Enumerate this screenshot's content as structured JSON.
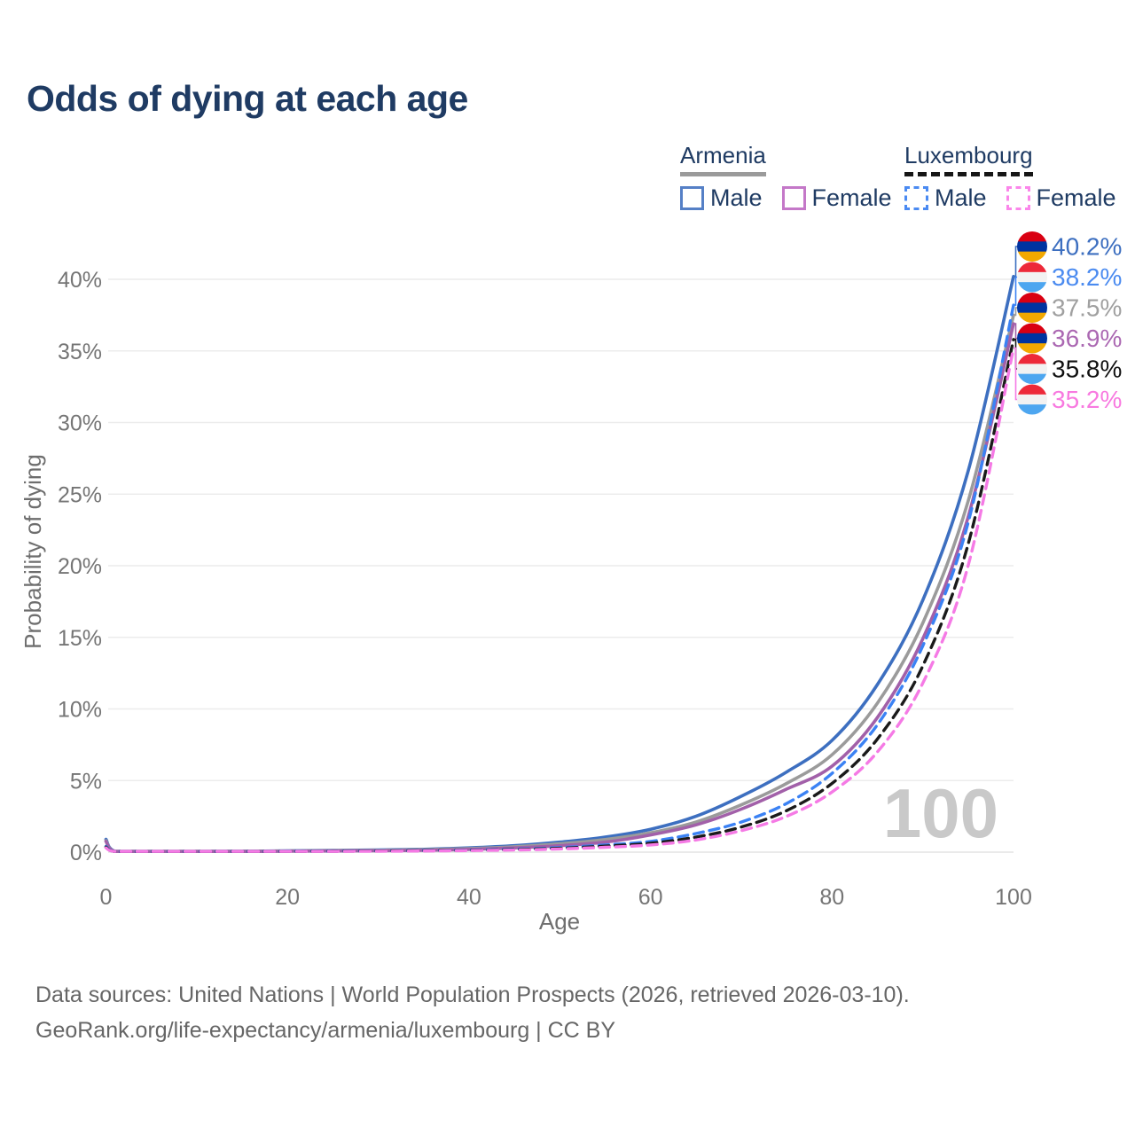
{
  "title": "Odds of dying at each age",
  "legend": {
    "groups": [
      {
        "name": "Armenia",
        "line_style": "solid",
        "underline_color": "#9a9a9a",
        "items": [
          {
            "label": "Male",
            "swatch_color": "#5580c6",
            "swatch_style": "solid"
          },
          {
            "label": "Female",
            "swatch_color": "#c478c8",
            "swatch_style": "solid"
          }
        ]
      },
      {
        "name": "Luxembourg",
        "line_style": "dashed",
        "underline_color": "#161616",
        "items": [
          {
            "label": "Male",
            "swatch_color": "#4a8af2",
            "swatch_style": "dashed"
          },
          {
            "label": "Female",
            "swatch_color": "#fb86ea",
            "swatch_style": "dashed"
          }
        ]
      }
    ]
  },
  "chart_data": {
    "type": "line",
    "title": "Odds of dying at each age",
    "xlabel": "Age",
    "ylabel": "Probability of dying",
    "xlim": [
      0,
      100
    ],
    "ylim": [
      0,
      42
    ],
    "grid": "horizontal",
    "xticks": [
      "0",
      "20",
      "40",
      "60",
      "80",
      "100"
    ],
    "xtick_values": [
      0,
      20,
      40,
      60,
      80,
      100
    ],
    "ytick_labels": [
      "0%",
      "5%",
      "10%",
      "15%",
      "20%",
      "25%",
      "30%",
      "35%",
      "40%"
    ],
    "ytick_values": [
      0,
      5,
      10,
      15,
      20,
      25,
      30,
      35,
      40
    ],
    "age_watermark": "100",
    "x": [
      0,
      1,
      5,
      10,
      15,
      20,
      25,
      30,
      35,
      40,
      45,
      50,
      55,
      60,
      65,
      70,
      75,
      80,
      85,
      90,
      95,
      100
    ],
    "flags": {
      "armenia": [
        "#d90012",
        "#0033a0",
        "#f2a800"
      ],
      "luxembourg": [
        "#ed2939",
        "#f2f2f2",
        "#4da6f0"
      ]
    },
    "series": [
      {
        "name": "Armenia Male",
        "country": "armenia",
        "sex": "male",
        "color": "#3d6fc0",
        "label_color": "#3d6fc0",
        "dash": "solid",
        "end_label": "40.2%",
        "values": [
          0.9,
          0.06,
          0.03,
          0.04,
          0.06,
          0.09,
          0.12,
          0.15,
          0.2,
          0.3,
          0.45,
          0.7,
          1.05,
          1.6,
          2.5,
          3.9,
          5.6,
          7.8,
          11.7,
          17.6,
          26.6,
          40.2
        ]
      },
      {
        "name": "Luxembourg Male",
        "country": "luxembourg",
        "sex": "male",
        "color": "#3b82f4",
        "label_color": "#4b8bf0",
        "dash": "dashed",
        "end_label": "38.2%",
        "values": [
          0.4,
          0.03,
          0.02,
          0.02,
          0.04,
          0.06,
          0.07,
          0.09,
          0.11,
          0.15,
          0.21,
          0.32,
          0.5,
          0.75,
          1.3,
          2.1,
          3.4,
          5.5,
          8.9,
          14.4,
          23.0,
          38.2
        ]
      },
      {
        "name": "Armenia Both",
        "country": "armenia",
        "sex": "both",
        "color": "#9b9b9b",
        "label_color": "#a0a0a0",
        "dash": "solid",
        "end_label": "37.5%",
        "values": [
          0.8,
          0.05,
          0.03,
          0.03,
          0.05,
          0.08,
          0.1,
          0.13,
          0.17,
          0.25,
          0.38,
          0.58,
          0.88,
          1.35,
          2.1,
          3.3,
          4.8,
          6.8,
          10.4,
          16.0,
          24.5,
          37.5
        ]
      },
      {
        "name": "Armenia Female",
        "country": "armenia",
        "sex": "female",
        "color": "#a260a9",
        "label_color": "#ab68b2",
        "dash": "solid",
        "end_label": "36.9%",
        "values": [
          0.75,
          0.05,
          0.02,
          0.03,
          0.04,
          0.06,
          0.08,
          0.1,
          0.13,
          0.19,
          0.3,
          0.45,
          0.7,
          1.2,
          1.9,
          3.0,
          4.4,
          6.0,
          9.4,
          14.9,
          23.4,
          36.9
        ]
      },
      {
        "name": "Luxembourg Both",
        "country": "luxembourg",
        "sex": "both",
        "color": "#1a1a1a",
        "label_color": "#111111",
        "dash": "dashed",
        "end_label": "35.8%",
        "values": [
          0.35,
          0.03,
          0.02,
          0.02,
          0.03,
          0.05,
          0.06,
          0.08,
          0.1,
          0.13,
          0.18,
          0.27,
          0.42,
          0.62,
          1.05,
          1.75,
          2.9,
          4.8,
          7.9,
          13.0,
          21.5,
          35.8
        ]
      },
      {
        "name": "Luxembourg Female",
        "country": "luxembourg",
        "sex": "female",
        "color": "#f57ae5",
        "label_color": "#f87ae0",
        "dash": "dashed",
        "end_label": "35.2%",
        "values": [
          0.3,
          0.02,
          0.01,
          0.02,
          0.03,
          0.04,
          0.05,
          0.06,
          0.08,
          0.11,
          0.15,
          0.22,
          0.34,
          0.5,
          0.85,
          1.5,
          2.5,
          4.2,
          7.0,
          11.8,
          20.0,
          35.2
        ]
      }
    ]
  },
  "footer": {
    "line1": "Data sources: United Nations | World Population Prospects (2026, retrieved 2026-03-10).",
    "line2": "GeoRank.org/life-expectancy/armenia/luxembourg | CC BY"
  }
}
